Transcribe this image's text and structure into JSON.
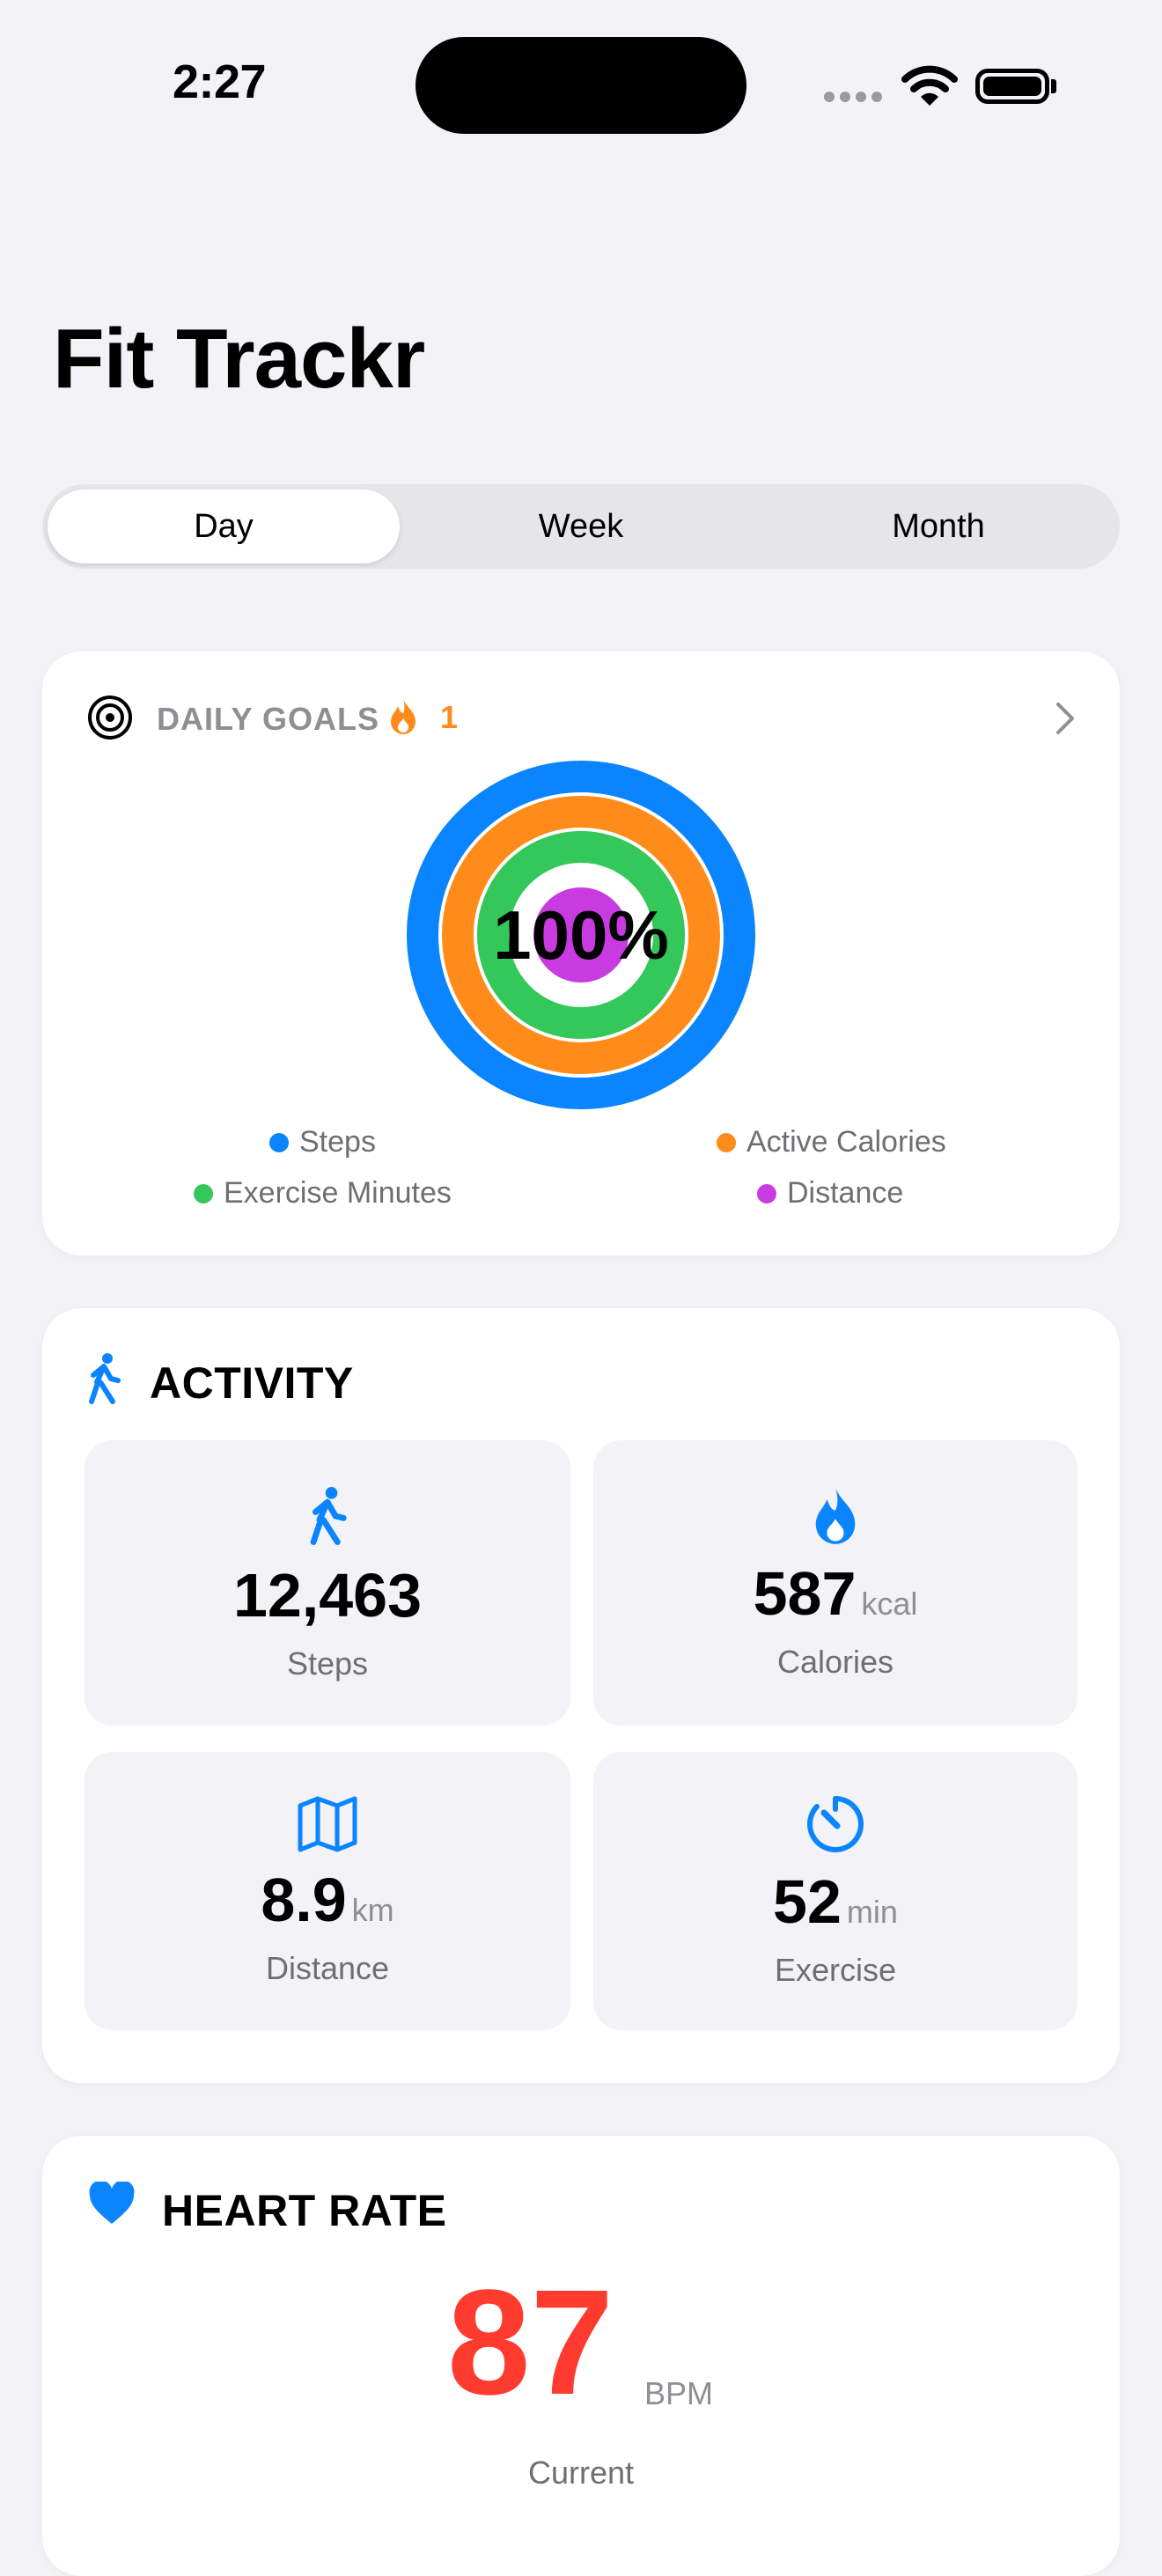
{
  "status_bar": {
    "time": "2:27"
  },
  "app": {
    "title": "Fit Trackr"
  },
  "segments": {
    "day": "Day",
    "week": "Week",
    "month": "Month",
    "selected": "Day"
  },
  "daily_goals": {
    "header": "DAILY GOALS",
    "streak": "1",
    "percent": "100%",
    "legend": [
      {
        "label": "Steps",
        "color": "#0a84ff"
      },
      {
        "label": "Active Calories",
        "color": "#ff8c1a"
      },
      {
        "label": "Exercise Minutes",
        "color": "#34c759"
      },
      {
        "label": "Distance",
        "color": "#c83be0"
      }
    ]
  },
  "activity": {
    "title": "ACTIVITY",
    "steps": {
      "value": "12,463",
      "label": "Steps"
    },
    "calories": {
      "value": "587",
      "unit": "kcal",
      "label": "Calories"
    },
    "distance": {
      "value": "8.9",
      "unit": "km",
      "label": "Distance"
    },
    "exercise": {
      "value": "52",
      "unit": "min",
      "label": "Exercise"
    }
  },
  "heart_rate": {
    "title": "HEART RATE",
    "value": "87",
    "unit": "BPM",
    "label": "Current"
  },
  "colors": {
    "accent": "#0a84ff",
    "heart": "#ff3b30"
  }
}
